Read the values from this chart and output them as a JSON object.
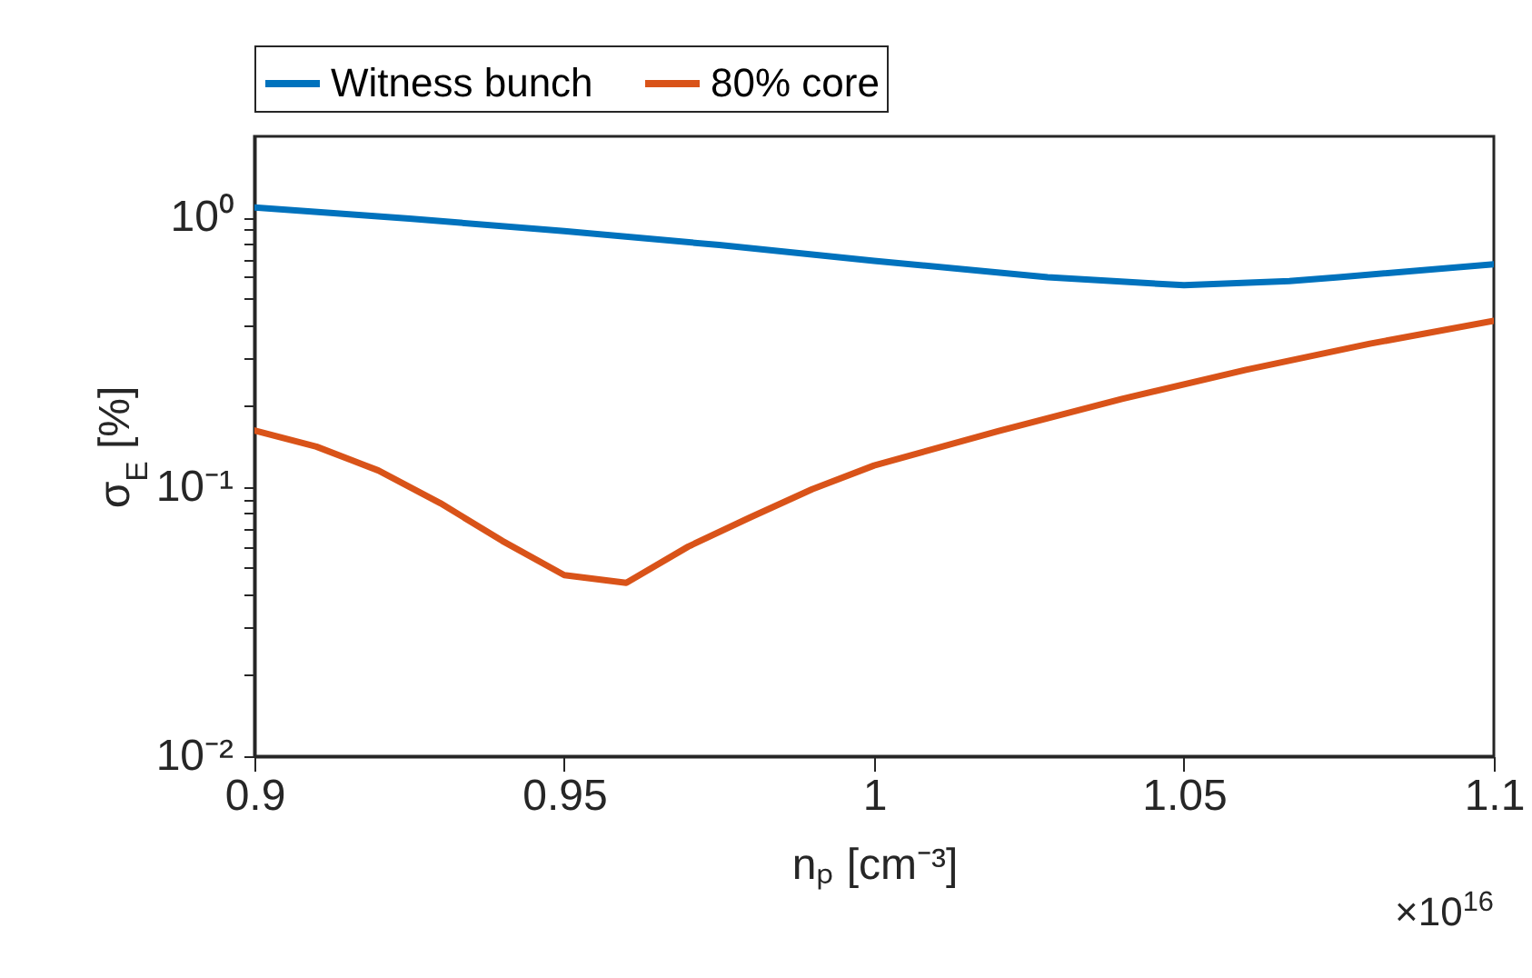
{
  "chart_data": {
    "type": "line",
    "xlabel": "nₚ [cm⁻³]",
    "ylabel": "σ$_{E}$ [%]",
    "annotations": [
      "×10$^{16}$"
    ],
    "xlim": [
      0.9,
      1.1
    ],
    "xticks": [
      0.9,
      0.95,
      1,
      1.05,
      1.1
    ],
    "ylim": [
      0.01,
      2
    ],
    "log": "y",
    "yticks": [
      {
        "value": 0.01,
        "label": "10⁻²"
      },
      {
        "value": 0.02,
        "label": null
      },
      {
        "value": 0.03,
        "label": null
      },
      {
        "value": 0.04,
        "label": null
      },
      {
        "value": 0.05,
        "label": null
      },
      {
        "value": 0.06,
        "label": null
      },
      {
        "value": 0.07,
        "label": null
      },
      {
        "value": 0.08,
        "label": null
      },
      {
        "value": 0.09,
        "label": null
      },
      {
        "value": 0.1,
        "label": "10⁻¹"
      },
      {
        "value": 0.2,
        "label": null
      },
      {
        "value": 0.3,
        "label": null
      },
      {
        "value": 0.4,
        "label": null
      },
      {
        "value": 0.5,
        "label": null
      },
      {
        "value": 0.6,
        "label": null
      },
      {
        "value": 0.7,
        "label": null
      },
      {
        "value": 0.8,
        "label": null
      },
      {
        "value": 0.9,
        "label": null
      },
      {
        "value": 1,
        "label": "10⁰"
      }
    ],
    "grid": false,
    "legend": "top",
    "series": [
      {
        "name": "Witness bunch",
        "color": "#0072bd",
        "x": [
          0.9,
          0.925,
          0.95,
          0.975,
          1.0,
          1.028,
          1.05,
          1.067,
          1.075,
          1.1
        ],
        "values": [
          1.09,
          0.99,
          0.89,
          0.79,
          0.69,
          0.6,
          0.56,
          0.58,
          0.6,
          0.67
        ]
      },
      {
        "name": "80% core",
        "color": "#d95319",
        "x": [
          0.9,
          0.91,
          0.92,
          0.93,
          0.94,
          0.95,
          0.96,
          0.97,
          0.98,
          0.99,
          1.0,
          1.02,
          1.04,
          1.06,
          1.08,
          1.1
        ],
        "values": [
          0.162,
          0.141,
          0.115,
          0.087,
          0.063,
          0.047,
          0.044,
          0.06,
          0.077,
          0.098,
          0.12,
          0.161,
          0.212,
          0.272,
          0.34,
          0.413
        ]
      }
    ]
  }
}
